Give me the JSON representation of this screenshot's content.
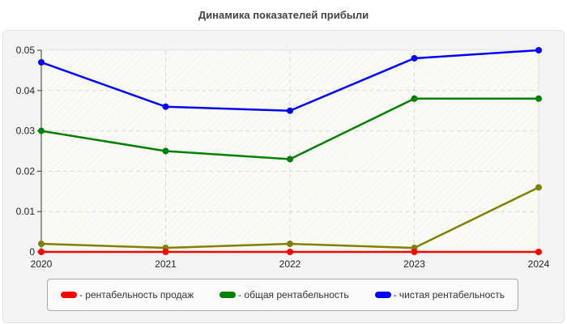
{
  "chart_data": {
    "type": "line",
    "title": "Динамика показателей прибыли",
    "xlabel": "",
    "ylabel": "",
    "categories": [
      "2020",
      "2021",
      "2022",
      "2023",
      "2024"
    ],
    "ylim": [
      0,
      0.05
    ],
    "yticks": [
      "0",
      "0.01",
      "0.02",
      "0.03",
      "0.04",
      "0.05"
    ],
    "grid": true,
    "legend_position": "bottom",
    "series": [
      {
        "name": "рентабельность продаж",
        "color": "#ff0000",
        "values": [
          0,
          0,
          0,
          0,
          0
        ]
      },
      {
        "name": "общая рентабельность",
        "color": "#008000",
        "values": [
          0.03,
          0.025,
          0.023,
          0.038,
          0.038
        ]
      },
      {
        "name": "чистая рентабельность",
        "color": "#0000ff",
        "values": [
          0.047,
          0.036,
          0.035,
          0.048,
          0.05
        ]
      },
      {
        "name": "",
        "color": "#808000",
        "values": [
          0.002,
          0.001,
          0.002,
          0.001,
          0.016
        ]
      }
    ]
  },
  "legend": {
    "items": [
      {
        "label": "- рентабельность продаж",
        "color": "#ff0000"
      },
      {
        "label": "- общая рентабельность",
        "color": "#008000"
      },
      {
        "label": "- чистая рентабельность",
        "color": "#0000ff"
      }
    ]
  }
}
